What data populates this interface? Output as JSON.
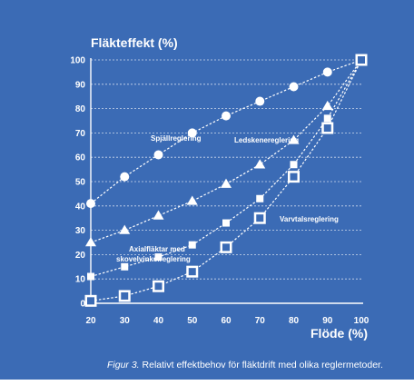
{
  "chart_data": {
    "type": "line",
    "ylabel": "Fläkteffekt (%)",
    "xlabel": "Flöde (%)",
    "x": [
      20,
      30,
      40,
      50,
      60,
      70,
      80,
      90,
      100
    ],
    "xticks": [
      "20",
      "30",
      "40",
      "50",
      "60",
      "70",
      "80",
      "90",
      "100"
    ],
    "yticks": [
      "0",
      "10",
      "20",
      "30",
      "40",
      "50",
      "60",
      "70",
      "80",
      "90",
      "100"
    ],
    "xlim": [
      20,
      100
    ],
    "ylim": [
      0,
      100
    ],
    "grid": true,
    "series": [
      {
        "name": "Spjällreglering",
        "marker": "circle",
        "x": [
          20,
          30,
          40,
          50,
          60,
          70,
          80,
          90,
          100
        ],
        "values": [
          41,
          52,
          61,
          70,
          77,
          83,
          89,
          95,
          100
        ]
      },
      {
        "name": "Ledskenereglering",
        "marker": "triangle",
        "x": [
          20,
          30,
          40,
          50,
          60,
          70,
          80,
          90,
          100
        ],
        "values": [
          25,
          30,
          36,
          42,
          49,
          57,
          67,
          81,
          100
        ]
      },
      {
        "name": "Axialfläktar med skovelvinkelreglering",
        "marker": "square-small",
        "x": [
          20,
          30,
          40,
          50,
          60,
          70,
          80,
          90,
          100
        ],
        "values": [
          11,
          15,
          19,
          24,
          33,
          43,
          57,
          76,
          100
        ]
      },
      {
        "name": "Varvtalsreglering",
        "marker": "square-hollow",
        "x": [
          20,
          30,
          40,
          50,
          60,
          70,
          80,
          90,
          100
        ],
        "values": [
          1,
          3,
          7,
          13,
          23,
          35,
          52,
          72,
          100
        ]
      }
    ],
    "annotations": [
      {
        "text": "Spjällreglering"
      },
      {
        "text": "Ledskenereglering"
      },
      {
        "text": "Varvtalsreglering"
      },
      {
        "text": "Axialfläktar med"
      },
      {
        "text": "skovelvinkelreglering"
      }
    ]
  },
  "caption": {
    "figure_label": "Figur 3.",
    "text": " Relativt effektbehov för fläktdrift med olika reglermetoder."
  },
  "colors": {
    "background": "#3b6bb5",
    "foreground": "#ffffff"
  }
}
